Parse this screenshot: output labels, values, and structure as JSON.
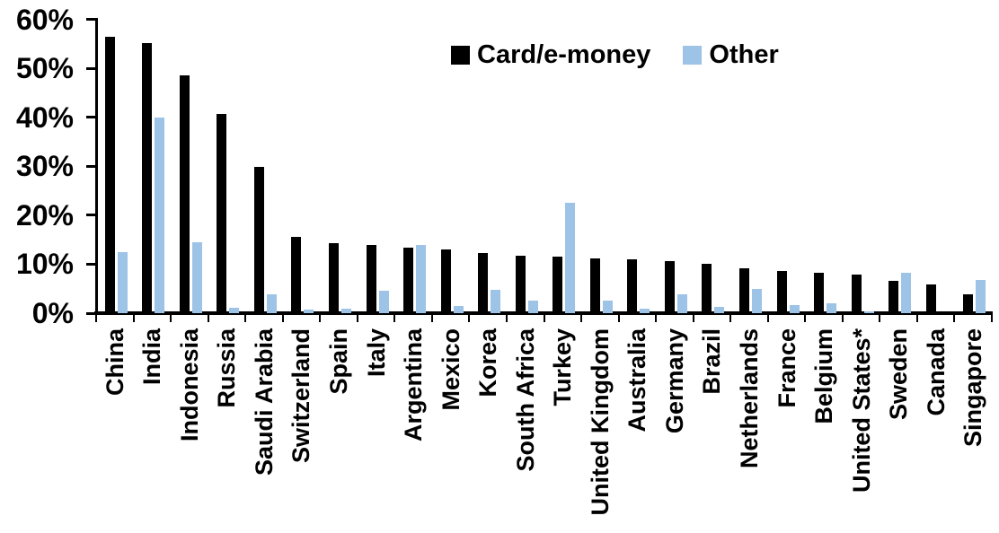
{
  "chart_data": {
    "type": "bar",
    "title": "",
    "xlabel": "",
    "ylabel": "",
    "ylim": [
      0,
      60
    ],
    "ytick_step": 10,
    "ytick_labels": [
      "0%",
      "10%",
      "20%",
      "30%",
      "40%",
      "50%",
      "60%"
    ],
    "grid": false,
    "legend_position": "top-center",
    "categories": [
      "China",
      "India",
      "Indonesia",
      "Russia",
      "Saudi Arabia",
      "Switzerland",
      "Spain",
      "Italy",
      "Argentina",
      "Mexico",
      "Korea",
      "South Africa",
      "Turkey",
      "United Kingdom",
      "Australia",
      "Germany",
      "Brazil",
      "Netherlands",
      "France",
      "Belgium",
      "United States*",
      "Sweden",
      "Canada",
      "Singapore"
    ],
    "series": [
      {
        "name": "Card/e-money",
        "color": "#000000",
        "values": [
          56.5,
          55.2,
          48.5,
          40.7,
          29.9,
          15.6,
          14.2,
          14.0,
          13.3,
          13.0,
          12.3,
          11.7,
          11.6,
          11.2,
          11.0,
          10.6,
          10.0,
          9.2,
          8.7,
          8.2,
          7.8,
          6.6,
          5.9,
          3.8
        ]
      },
      {
        "name": "Other",
        "color": "#9DC3E6",
        "values": [
          12.4,
          39.9,
          14.5,
          1.1,
          3.9,
          0.7,
          1.0,
          4.6,
          13.9,
          1.5,
          4.7,
          2.5,
          22.6,
          2.5,
          1.0,
          3.9,
          1.2,
          4.9,
          1.7,
          2.1,
          0.4,
          8.2,
          0.0,
          6.7
        ]
      }
    ]
  }
}
